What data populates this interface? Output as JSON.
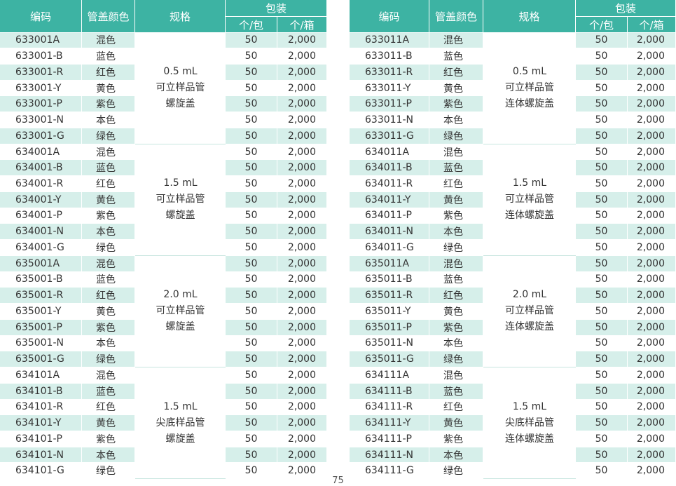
{
  "tables": [
    {
      "headers": {
        "code": "编码",
        "color": "管盖颜色",
        "spec": "规格",
        "pack": "包装",
        "per_bag": "个/包",
        "per_box": "个/箱"
      },
      "groups": [
        {
          "spec": [
            "0.5 mL",
            "可立样品管",
            "螺旋盖"
          ],
          "rows": [
            [
              "633001A",
              "混色",
              "50",
              "2,000"
            ],
            [
              "633001-B",
              "蓝色",
              "50",
              "2,000"
            ],
            [
              "633001-R",
              "红色",
              "50",
              "2,000"
            ],
            [
              "633001-Y",
              "黄色",
              "50",
              "2,000"
            ],
            [
              "633001-P",
              "紫色",
              "50",
              "2,000"
            ],
            [
              "633001-N",
              "本色",
              "50",
              "2,000"
            ],
            [
              "633001-G",
              "绿色",
              "50",
              "2,000"
            ]
          ]
        },
        {
          "spec": [
            "1.5 mL",
            "可立样品管",
            "螺旋盖"
          ],
          "rows": [
            [
              "634001A",
              "混色",
              "50",
              "2,000"
            ],
            [
              "634001-B",
              "蓝色",
              "50",
              "2,000"
            ],
            [
              "634001-R",
              "红色",
              "50",
              "2,000"
            ],
            [
              "634001-Y",
              "黄色",
              "50",
              "2,000"
            ],
            [
              "634001-P",
              "紫色",
              "50",
              "2,000"
            ],
            [
              "634001-N",
              "本色",
              "50",
              "2,000"
            ],
            [
              "634001-G",
              "绿色",
              "50",
              "2,000"
            ]
          ]
        },
        {
          "spec": [
            "2.0 mL",
            "可立样品管",
            "螺旋盖"
          ],
          "rows": [
            [
              "635001A",
              "混色",
              "50",
              "2,000"
            ],
            [
              "635001-B",
              "蓝色",
              "50",
              "2,000"
            ],
            [
              "635001-R",
              "红色",
              "50",
              "2,000"
            ],
            [
              "635001-Y",
              "黄色",
              "50",
              "2,000"
            ],
            [
              "635001-P",
              "紫色",
              "50",
              "2,000"
            ],
            [
              "635001-N",
              "本色",
              "50",
              "2,000"
            ],
            [
              "635001-G",
              "绿色",
              "50",
              "2,000"
            ]
          ]
        },
        {
          "spec": [
            "1.5 mL",
            "尖底样品管",
            "螺旋盖"
          ],
          "rows": [
            [
              "634101A",
              "混色",
              "50",
              "2,000"
            ],
            [
              "634101-B",
              "蓝色",
              "50",
              "2,000"
            ],
            [
              "634101-R",
              "红色",
              "50",
              "2,000"
            ],
            [
              "634101-Y",
              "黄色",
              "50",
              "2,000"
            ],
            [
              "634101-P",
              "紫色",
              "50",
              "2,000"
            ],
            [
              "634101-N",
              "本色",
              "50",
              "2,000"
            ],
            [
              "634101-G",
              "绿色",
              "50",
              "2,000"
            ]
          ]
        }
      ]
    },
    {
      "headers": {
        "code": "编码",
        "color": "管盖颜色",
        "spec": "规格",
        "pack": "包装",
        "per_bag": "个/包",
        "per_box": "个/箱"
      },
      "groups": [
        {
          "spec": [
            "0.5 mL",
            "可立样品管",
            "连体螺旋盖"
          ],
          "rows": [
            [
              "633011A",
              "混色",
              "50",
              "2,000"
            ],
            [
              "633011-B",
              "蓝色",
              "50",
              "2,000"
            ],
            [
              "633011-R",
              "红色",
              "50",
              "2,000"
            ],
            [
              "633011-Y",
              "黄色",
              "50",
              "2,000"
            ],
            [
              "633011-P",
              "紫色",
              "50",
              "2,000"
            ],
            [
              "633011-N",
              "本色",
              "50",
              "2,000"
            ],
            [
              "633011-G",
              "绿色",
              "50",
              "2,000"
            ]
          ]
        },
        {
          "spec": [
            "1.5 mL",
            "可立样品管",
            "连体螺旋盖"
          ],
          "rows": [
            [
              "634011A",
              "混色",
              "50",
              "2,000"
            ],
            [
              "634011-B",
              "蓝色",
              "50",
              "2,000"
            ],
            [
              "634011-R",
              "红色",
              "50",
              "2,000"
            ],
            [
              "634011-Y",
              "黄色",
              "50",
              "2,000"
            ],
            [
              "634011-P",
              "紫色",
              "50",
              "2,000"
            ],
            [
              "634011-N",
              "本色",
              "50",
              "2,000"
            ],
            [
              "634011-G",
              "绿色",
              "50",
              "2,000"
            ]
          ]
        },
        {
          "spec": [
            "2.0 mL",
            "可立样品管",
            "连体螺旋盖"
          ],
          "rows": [
            [
              "635011A",
              "混色",
              "50",
              "2,000"
            ],
            [
              "635011-B",
              "蓝色",
              "50",
              "2,000"
            ],
            [
              "635011-R",
              "红色",
              "50",
              "2,000"
            ],
            [
              "635011-Y",
              "黄色",
              "50",
              "2,000"
            ],
            [
              "635011-P",
              "紫色",
              "50",
              "2,000"
            ],
            [
              "635011-N",
              "本色",
              "50",
              "2,000"
            ],
            [
              "635011-G",
              "绿色",
              "50",
              "2,000"
            ]
          ]
        },
        {
          "spec": [
            "1.5 mL",
            "尖底样品管",
            "连体螺旋盖"
          ],
          "rows": [
            [
              "634111A",
              "混色",
              "50",
              "2,000"
            ],
            [
              "634111-B",
              "蓝色",
              "50",
              "2,000"
            ],
            [
              "634111-R",
              "红色",
              "50",
              "2,000"
            ],
            [
              "634111-Y",
              "黄色",
              "50",
              "2,000"
            ],
            [
              "634111-P",
              "紫色",
              "50",
              "2,000"
            ],
            [
              "634111-N",
              "本色",
              "50",
              "2,000"
            ],
            [
              "634111-G",
              "绿色",
              "50",
              "2,000"
            ]
          ]
        }
      ]
    }
  ],
  "page_number": "75"
}
